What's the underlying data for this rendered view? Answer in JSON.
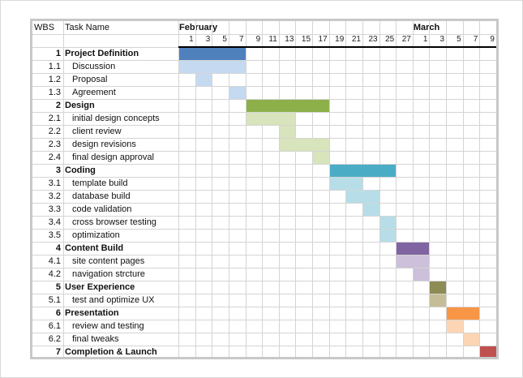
{
  "headers": {
    "wbs": "WBS",
    "task": "Task Name"
  },
  "months": [
    {
      "label": "February",
      "start_col": 0
    },
    {
      "label": "March",
      "start_col": 14
    }
  ],
  "days": [
    "1",
    "3",
    "5",
    "7",
    "9",
    "11",
    "13",
    "15",
    "17",
    "19",
    "21",
    "23",
    "25",
    "27",
    "1",
    "3",
    "5",
    "7",
    "9"
  ],
  "colors": {
    "blue_main": "#4f81bd",
    "blue_light": "#c5d9f1",
    "green_main": "#8db04a",
    "green_light": "#d8e4bc",
    "teal_main": "#4bacc6",
    "teal_light": "#b7dee8",
    "purple_main": "#8064a2",
    "purple_light": "#ccc0da",
    "olive_main": "#8c8c54",
    "olive_light": "#c4bd97",
    "orange_main": "#f79646",
    "orange_light": "#fcd5b4",
    "red_main": "#c0504d"
  },
  "tasks": [
    {
      "wbs": "1",
      "name": "Project Definition",
      "level": 1,
      "start": 0,
      "span": 4,
      "color": "blue_main"
    },
    {
      "wbs": "1.1",
      "name": "Discussion",
      "level": 2,
      "start": 0,
      "span": 4,
      "color": "blue_light"
    },
    {
      "wbs": "1.2",
      "name": "Proposal",
      "level": 2,
      "start": 1,
      "span": 1,
      "color": "blue_light"
    },
    {
      "wbs": "1.3",
      "name": "Agreement",
      "level": 2,
      "start": 3,
      "span": 1,
      "color": "blue_light"
    },
    {
      "wbs": "2",
      "name": "Design",
      "level": 1,
      "start": 4,
      "span": 5,
      "color": "green_main"
    },
    {
      "wbs": "2.1",
      "name": "initial design concepts",
      "level": 2,
      "start": 4,
      "span": 3,
      "color": "green_light"
    },
    {
      "wbs": "2.2",
      "name": "client review",
      "level": 2,
      "start": 6,
      "span": 1,
      "color": "green_light"
    },
    {
      "wbs": "2.3",
      "name": "design revisions",
      "level": 2,
      "start": 6,
      "span": 3,
      "color": "green_light"
    },
    {
      "wbs": "2.4",
      "name": "final design approval",
      "level": 2,
      "start": 8,
      "span": 1,
      "color": "green_light"
    },
    {
      "wbs": "3",
      "name": "Coding",
      "level": 1,
      "start": 9,
      "span": 4,
      "color": "teal_main"
    },
    {
      "wbs": "3.1",
      "name": "template build",
      "level": 2,
      "start": 9,
      "span": 2,
      "color": "teal_light"
    },
    {
      "wbs": "3.2",
      "name": "database build",
      "level": 2,
      "start": 10,
      "span": 2,
      "color": "teal_light"
    },
    {
      "wbs": "3.3",
      "name": "code validation",
      "level": 2,
      "start": 11,
      "span": 1,
      "color": "teal_light"
    },
    {
      "wbs": "3.4",
      "name": "cross browser testing",
      "level": 2,
      "start": 12,
      "span": 1,
      "color": "teal_light"
    },
    {
      "wbs": "3.5",
      "name": "optimization",
      "level": 2,
      "start": 12,
      "span": 1,
      "color": "teal_light"
    },
    {
      "wbs": "4",
      "name": "Content Build",
      "level": 1,
      "start": 13,
      "span": 2,
      "color": "purple_main"
    },
    {
      "wbs": "4.1",
      "name": "site content pages",
      "level": 2,
      "start": 13,
      "span": 2,
      "color": "purple_light"
    },
    {
      "wbs": "4.2",
      "name": "navigation strcture",
      "level": 2,
      "start": 14,
      "span": 1,
      "color": "purple_light"
    },
    {
      "wbs": "5",
      "name": "User Experience",
      "level": 1,
      "start": 15,
      "span": 1,
      "color": "olive_main"
    },
    {
      "wbs": "5.1",
      "name": "test and optimize UX",
      "level": 2,
      "start": 15,
      "span": 1,
      "color": "olive_light"
    },
    {
      "wbs": "6",
      "name": "Presentation",
      "level": 1,
      "start": 16,
      "span": 2,
      "color": "orange_main"
    },
    {
      "wbs": "6.1",
      "name": "review and testing",
      "level": 2,
      "start": 16,
      "span": 1,
      "color": "orange_light"
    },
    {
      "wbs": "6.2",
      "name": "final tweaks",
      "level": 2,
      "start": 17,
      "span": 1,
      "color": "orange_light"
    },
    {
      "wbs": "7",
      "name": "Completion & Launch",
      "level": 1,
      "start": 18,
      "span": 1,
      "color": "red_main"
    }
  ]
}
